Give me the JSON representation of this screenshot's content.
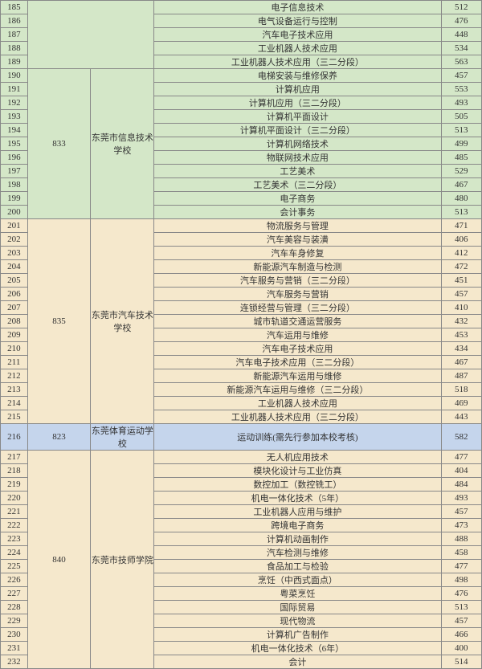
{
  "columns": {
    "idx_width": 32,
    "code_width": 50,
    "school_width": 100,
    "major_width": 340,
    "score_width": 48
  },
  "rows": [
    {
      "idx": "185",
      "major": "电子信息技术",
      "score": "512",
      "group": "g1"
    },
    {
      "idx": "186",
      "major": "电气设备运行与控制",
      "score": "476",
      "group": "g1"
    },
    {
      "idx": "187",
      "major": "汽车电子技术应用",
      "score": "448",
      "group": "g1"
    },
    {
      "idx": "188",
      "major": "工业机器人技术应用",
      "score": "534",
      "group": "g1"
    },
    {
      "idx": "189",
      "major": "工业机器人技术应用（三二分段）",
      "score": "563",
      "group": "g1"
    },
    {
      "idx": "190",
      "major": "电梯安装与维修保养",
      "score": "457",
      "group": "g1"
    },
    {
      "idx": "191",
      "major": "计算机应用",
      "score": "553",
      "group": "g1"
    },
    {
      "idx": "192",
      "major": "计算机应用（三二分段）",
      "score": "493",
      "group": "g1"
    },
    {
      "idx": "193",
      "major": "计算机平面设计",
      "score": "505",
      "group": "g1"
    },
    {
      "idx": "194",
      "major": "计算机平面设计（三二分段）",
      "score": "513",
      "group": "g1"
    },
    {
      "idx": "195",
      "major": "计算机网络技术",
      "score": "499",
      "group": "g1"
    },
    {
      "idx": "196",
      "major": "物联网技术应用",
      "score": "485",
      "group": "g1"
    },
    {
      "idx": "197",
      "major": "工艺美术",
      "score": "529",
      "group": "g1"
    },
    {
      "idx": "198",
      "major": "工艺美术（三二分段）",
      "score": "467",
      "group": "g1"
    },
    {
      "idx": "199",
      "major": "电子商务",
      "score": "480",
      "group": "g1"
    },
    {
      "idx": "200",
      "major": "会计事务",
      "score": "513",
      "group": "g1"
    },
    {
      "idx": "201",
      "major": "物流服务与管理",
      "score": "471",
      "group": "g2"
    },
    {
      "idx": "202",
      "major": "汽车美容与装潢",
      "score": "406",
      "group": "g2"
    },
    {
      "idx": "203",
      "major": "汽车车身修复",
      "score": "412",
      "group": "g2"
    },
    {
      "idx": "204",
      "major": "新能源汽车制造与检测",
      "score": "472",
      "group": "g2"
    },
    {
      "idx": "205",
      "major": "汽车服务与营销（三二分段）",
      "score": "451",
      "group": "g2"
    },
    {
      "idx": "206",
      "major": "汽车服务与营销",
      "score": "457",
      "group": "g2"
    },
    {
      "idx": "207",
      "major": "连锁经营与管理（三二分段）",
      "score": "410",
      "group": "g2"
    },
    {
      "idx": "208",
      "major": "城市轨道交通运营服务",
      "score": "432",
      "group": "g2"
    },
    {
      "idx": "209",
      "major": "汽车运用与维修",
      "score": "453",
      "group": "g2"
    },
    {
      "idx": "210",
      "major": "汽车电子技术应用",
      "score": "434",
      "group": "g2"
    },
    {
      "idx": "211",
      "major": "汽车电子技术应用（三二分段）",
      "score": "467",
      "group": "g2"
    },
    {
      "idx": "212",
      "major": "新能源汽车运用与维修",
      "score": "487",
      "group": "g2"
    },
    {
      "idx": "213",
      "major": "新能源汽车运用与维修（三二分段）",
      "score": "518",
      "group": "g2"
    },
    {
      "idx": "214",
      "major": "工业机器人技术应用",
      "score": "469",
      "group": "g2"
    },
    {
      "idx": "215",
      "major": "工业机器人技术应用（三二分段）",
      "score": "443",
      "group": "g2"
    },
    {
      "idx": "216",
      "major": "运动训练(需先行参加本校考核)",
      "score": "582",
      "group": "g3"
    },
    {
      "idx": "217",
      "major": "无人机应用技术",
      "score": "477",
      "group": "g4"
    },
    {
      "idx": "218",
      "major": "模块化设计与工业仿真",
      "score": "404",
      "group": "g4"
    },
    {
      "idx": "219",
      "major": "数控加工（数控铣工）",
      "score": "484",
      "group": "g4"
    },
    {
      "idx": "220",
      "major": "机电一体化技术（5年）",
      "score": "493",
      "group": "g4"
    },
    {
      "idx": "221",
      "major": "工业机器人应用与维护",
      "score": "457",
      "group": "g4"
    },
    {
      "idx": "222",
      "major": "跨境电子商务",
      "score": "473",
      "group": "g4"
    },
    {
      "idx": "223",
      "major": "计算机动画制作",
      "score": "488",
      "group": "g4"
    },
    {
      "idx": "224",
      "major": "汽车检测与维修",
      "score": "458",
      "group": "g4"
    },
    {
      "idx": "225",
      "major": "食品加工与检验",
      "score": "477",
      "group": "g4"
    },
    {
      "idx": "226",
      "major": "烹饪（中西式面点）",
      "score": "498",
      "group": "g4"
    },
    {
      "idx": "227",
      "major": "粤菜烹饪",
      "score": "476",
      "group": "g4"
    },
    {
      "idx": "228",
      "major": "国际贸易",
      "score": "513",
      "group": "g4"
    },
    {
      "idx": "229",
      "major": "现代物流",
      "score": "457",
      "group": "g4"
    },
    {
      "idx": "230",
      "major": "计算机广告制作",
      "score": "466",
      "group": "g4"
    },
    {
      "idx": "231",
      "major": "机电一体化技术（6年）",
      "score": "400",
      "group": "g4"
    },
    {
      "idx": "232",
      "major": "会计",
      "score": "514",
      "group": "g4"
    }
  ],
  "groups": {
    "g1": {
      "code": "833",
      "school": "东莞市信息技术学校",
      "bg": "bg-green",
      "codeRow": "193",
      "schoolRow": "193",
      "blankRows": 5,
      "codeSpan": 11,
      "schoolSpan": 11
    },
    "g2": {
      "code": "835",
      "school": "东莞市汽车技术学校",
      "bg": "bg-tan",
      "codeRow": "208",
      "schoolRow": "208",
      "codeSpan": 15,
      "schoolSpan": 15,
      "firstRow": "201"
    },
    "g3": {
      "code": "823",
      "school": "东莞体育运动学校",
      "bg": "bg-blue",
      "codeRow": "216",
      "schoolRow": "216",
      "codeSpan": 1,
      "schoolSpan": 1,
      "firstRow": "216"
    },
    "g4": {
      "code": "840",
      "school": "东莞市技师学院",
      "bg": "bg-tan",
      "codeRow": "224",
      "schoolRow": "224",
      "codeSpan": 16,
      "schoolSpan": 16,
      "firstRow": "217"
    }
  }
}
